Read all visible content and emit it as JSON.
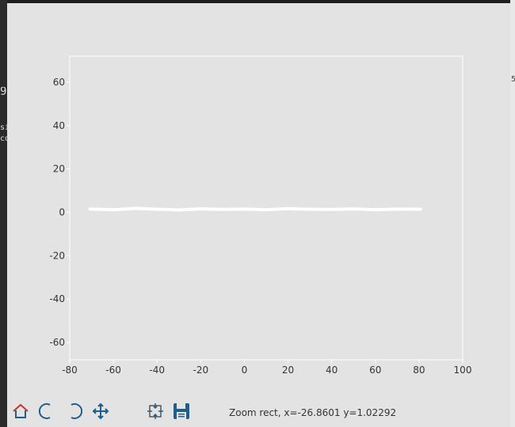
{
  "background": {
    "left_snippets": [
      "si",
      "co"
    ],
    "left_marker": "9",
    "right_snippets": [
      "5"
    ]
  },
  "figure": {
    "background_color": "#e3e3e3",
    "axes_background": "#e3e3e3",
    "axes_edge_color": "#ffffff"
  },
  "chart_data": {
    "type": "line",
    "title": "",
    "xlabel": "",
    "ylabel": "",
    "xlim": [
      -80,
      100
    ],
    "ylim": [
      -68,
      72
    ],
    "xticks": [
      -80,
      -60,
      -40,
      -20,
      0,
      20,
      40,
      60,
      80,
      100
    ],
    "yticks": [
      60,
      40,
      20,
      0,
      -20,
      -40,
      -60
    ],
    "xtick_labels": [
      "-80",
      "-60",
      "-40",
      "-20",
      "0",
      "20",
      "40",
      "60",
      "80",
      "100"
    ],
    "ytick_labels": [
      "60",
      "40",
      "20",
      "0",
      "-20",
      "-40",
      "-60"
    ],
    "grid": false,
    "line_color": "#ffffff",
    "series": [
      {
        "x": [
          -71,
          -60,
          -50,
          -40,
          -30,
          -20,
          -10,
          0,
          10,
          20,
          30,
          40,
          50,
          60,
          70,
          81
        ],
        "values": [
          1.5,
          1.2,
          1.8,
          1.4,
          1.1,
          1.6,
          1.3,
          1.5,
          1.2,
          1.7,
          1.4,
          1.3,
          1.6,
          1.2,
          1.5,
          1.4
        ]
      }
    ]
  },
  "toolbar": {
    "status": "Zoom rect, x=-26.8601    y=1.02292",
    "icons": [
      "home-icon",
      "back-icon",
      "forward-icon",
      "pan-icon",
      "subplots-icon",
      "save-icon"
    ]
  }
}
